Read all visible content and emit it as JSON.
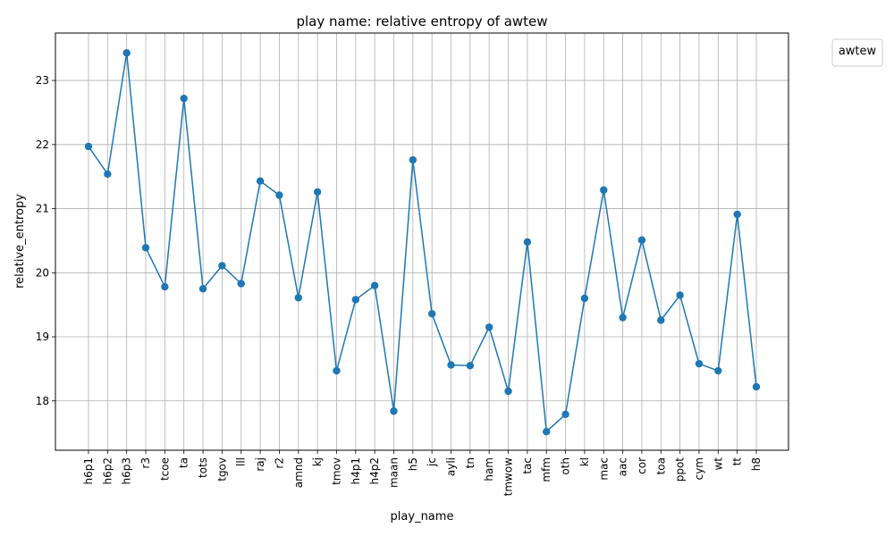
{
  "chart_data": {
    "type": "line",
    "title": "play name: relative entropy of awtew",
    "xlabel": "play_name",
    "ylabel": "relative_entropy",
    "legend_title": "awtew",
    "legend_position": "outside-top-right",
    "grid": true,
    "markers": true,
    "series_color": "#1f77b4",
    "ylim": [
      17.23,
      23.74
    ],
    "yticks": [
      18,
      19,
      20,
      21,
      22,
      23
    ],
    "categories": [
      "h6p1",
      "h6p2",
      "h6p3",
      "r3",
      "tcoe",
      "ta",
      "tots",
      "tgov",
      "lll",
      "raj",
      "r2",
      "amnd",
      "kj",
      "tmov",
      "h4p1",
      "h4p2",
      "maan",
      "h5",
      "jc",
      "ayli",
      "tn",
      "ham",
      "tmwow",
      "tac",
      "mfm",
      "oth",
      "kl",
      "mac",
      "aac",
      "cor",
      "toa",
      "ppot",
      "cym",
      "wt",
      "tt",
      "h8"
    ],
    "values": [
      21.97,
      21.54,
      23.43,
      20.39,
      19.78,
      22.72,
      19.75,
      20.11,
      19.83,
      21.43,
      21.21,
      19.61,
      21.26,
      18.47,
      19.58,
      19.8,
      17.84,
      21.76,
      19.36,
      18.56,
      18.55,
      19.15,
      18.15,
      20.48,
      17.52,
      17.79,
      19.6,
      21.29,
      19.3,
      20.51,
      19.26,
      19.65,
      18.58,
      18.47,
      20.91,
      18.22
    ]
  }
}
